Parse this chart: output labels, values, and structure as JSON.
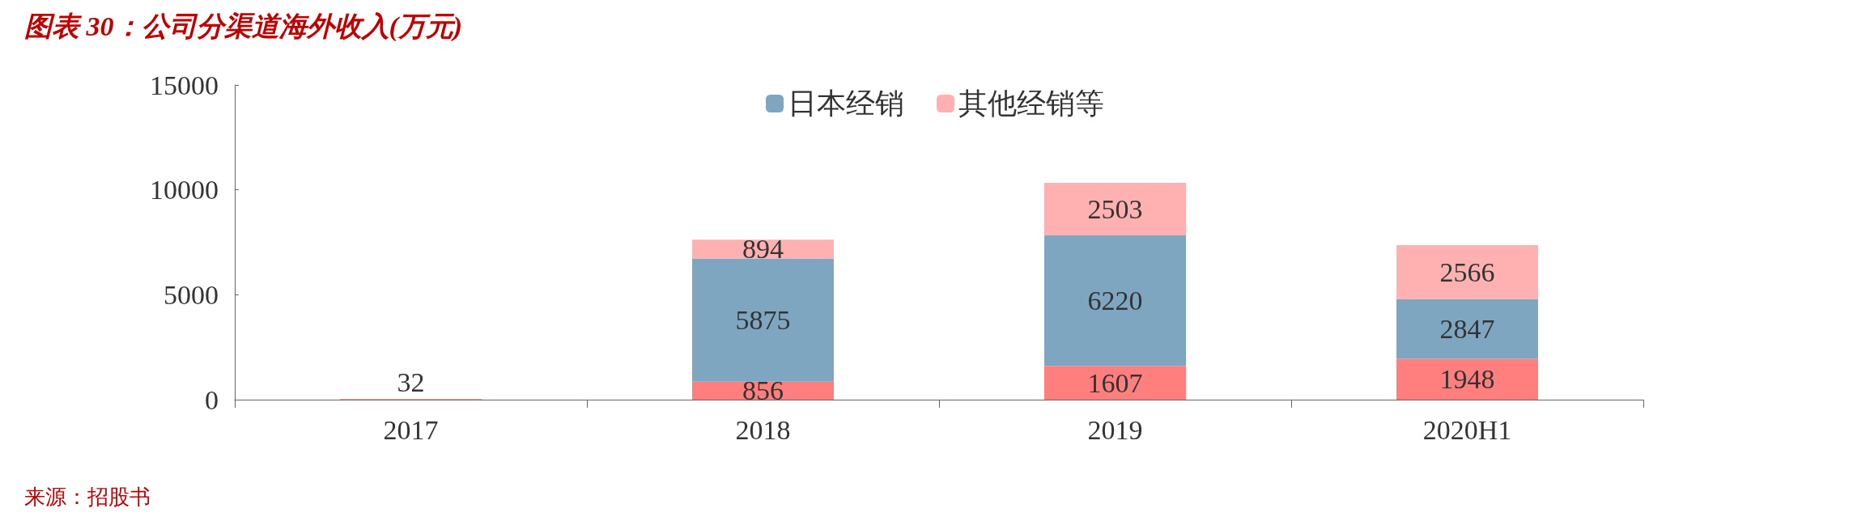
{
  "chart_data": {
    "type": "bar",
    "title": "图表 30：公司分渠道海外收入(万元)",
    "categories": [
      "2017",
      "2018",
      "2019",
      "2020H1"
    ],
    "series": [
      {
        "color": "#ff7f7f",
        "values": [
          32,
          856,
          1607,
          1948
        ]
      },
      {
        "name": "日本经销",
        "color": "#7fa6c0",
        "values": [
          null,
          5875,
          6220,
          2847
        ]
      },
      {
        "name": "其他经销等",
        "color": "#ffb0b0",
        "values": [
          null,
          894,
          2503,
          2566
        ]
      }
    ],
    "stacked": true,
    "data_labels": true,
    "ylim": [
      0,
      15000
    ],
    "yticks": [
      0,
      5000,
      10000,
      15000
    ],
    "grid": false,
    "legend": "top",
    "annotations": [
      "来源：招股书"
    ]
  }
}
